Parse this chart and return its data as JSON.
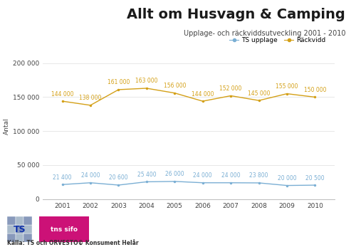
{
  "title": "Allt om Husvagn & Camping",
  "subtitle": "Upplage- och räckviddsutveckling 2001 - 2010",
  "years": [
    2001,
    2002,
    2003,
    2004,
    2005,
    2006,
    2007,
    2008,
    2009,
    2010
  ],
  "rackvidd": [
    144000,
    138000,
    161000,
    163000,
    156000,
    144000,
    152000,
    145000,
    155000,
    150000
  ],
  "upplage": [
    21400,
    24000,
    20600,
    25400,
    26000,
    24000,
    24000,
    23800,
    20000,
    20500
  ],
  "rackvidd_labels": [
    "144 000",
    "138 000",
    "161 000",
    "163 000",
    "156 000",
    "144 000",
    "152 000",
    "145 000",
    "155 000",
    "150 000"
  ],
  "upplage_labels": [
    "21 400",
    "24 000",
    "20 600",
    "25 400",
    "26 000",
    "24 000",
    "24 000",
    "23 800",
    "20 000",
    "20 500"
  ],
  "rackvidd_color": "#D4A017",
  "upplage_color": "#7BAFD4",
  "background_color": "#FFFFFF",
  "ylabel": "Antal",
  "yticks": [
    0,
    50000,
    100000,
    150000,
    200000
  ],
  "ytick_labels": [
    "0",
    "50 000",
    "100 000",
    "150 000",
    "200 000"
  ],
  "legend_upplage": "TS upplage",
  "legend_rackvidd": "Räckvidd",
  "source_text": "Källa: TS och ORVESTO© Konsument Helår",
  "title_fontsize": 14,
  "subtitle_fontsize": 7,
  "axis_fontsize": 6.5,
  "label_fontsize": 5.5
}
